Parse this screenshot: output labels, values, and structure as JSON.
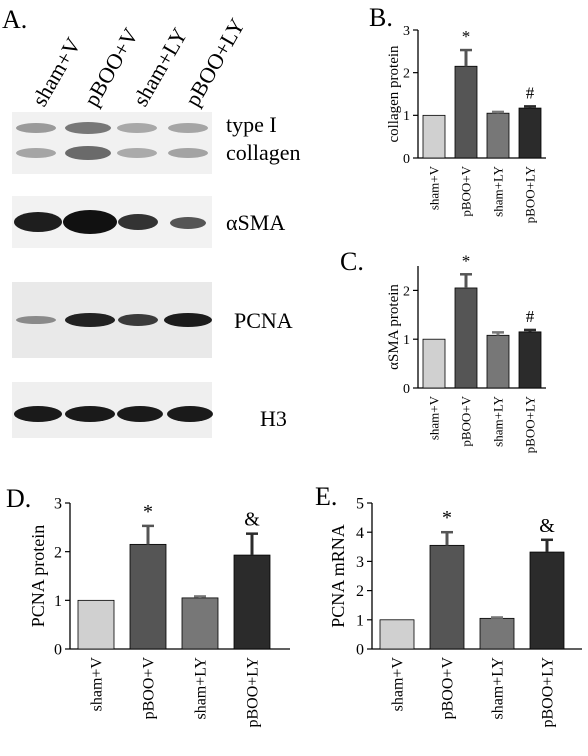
{
  "colors": {
    "sham_v": "#d0d0d0",
    "pboo_v": "#555555",
    "sham_ly": "#777777",
    "pboo_ly": "#2b2b2b",
    "axis": "#000000"
  },
  "panel_a": {
    "label": "A.",
    "lanes": [
      "sham+V",
      "pBOO+V",
      "sham+LY",
      "pBOO+LY"
    ],
    "blots": [
      {
        "label_lines": [
          "type I",
          "collagen"
        ]
      },
      {
        "label_lines": [
          "αSMA"
        ]
      },
      {
        "label_lines": [
          "PCNA"
        ]
      },
      {
        "label_lines": [
          "H3"
        ]
      }
    ]
  },
  "chart_data": [
    {
      "panel": "B.",
      "type": "bar",
      "categories": [
        "sham+V",
        "pBOO+V",
        "sham+LY",
        "pBOO+LY"
      ],
      "values": [
        1.0,
        2.15,
        1.05,
        1.17
      ],
      "errors": [
        0,
        0.38,
        0.03,
        0.04
      ],
      "annotations": [
        "",
        "*",
        "",
        "#"
      ],
      "xlabel": "",
      "ylabel": "collagen protein",
      "ylim": [
        0,
        3
      ],
      "yticks": [
        0,
        1,
        2,
        3
      ],
      "grid": false,
      "legend": "none"
    },
    {
      "panel": "C.",
      "type": "bar",
      "categories": [
        "sham+V",
        "pBOO+V",
        "sham+LY",
        "pBOO+LY"
      ],
      "values": [
        1.0,
        2.05,
        1.08,
        1.15
      ],
      "errors": [
        0,
        0.28,
        0.06,
        0.04
      ],
      "annotations": [
        "",
        "*",
        "",
        "#"
      ],
      "xlabel": "",
      "ylabel": "αSMA protein",
      "ylim": [
        0,
        2.5
      ],
      "yticks": [
        0,
        1,
        2
      ],
      "grid": false,
      "legend": "none"
    },
    {
      "panel": "D.",
      "type": "bar",
      "categories": [
        "sham+V",
        "pBOO+V",
        "sham+LY",
        "pBOO+LY"
      ],
      "values": [
        1.0,
        2.15,
        1.05,
        1.93
      ],
      "errors": [
        0,
        0.38,
        0.03,
        0.44
      ],
      "annotations": [
        "",
        "*",
        "",
        "&"
      ],
      "xlabel": "",
      "ylabel": "PCNA protein",
      "ylim": [
        0,
        3
      ],
      "yticks": [
        0,
        1,
        2,
        3
      ],
      "grid": false,
      "legend": "none"
    },
    {
      "panel": "E.",
      "type": "bar",
      "categories": [
        "sham+V",
        "pBOO+V",
        "sham+LY",
        "pBOO+LY"
      ],
      "values": [
        1.0,
        3.55,
        1.05,
        3.32
      ],
      "errors": [
        0,
        0.45,
        0.03,
        0.42
      ],
      "annotations": [
        "",
        "*",
        "",
        "&"
      ],
      "xlabel": "",
      "ylabel": "PCNA mRNA",
      "ylim": [
        0,
        5
      ],
      "yticks": [
        0,
        1,
        2,
        3,
        4,
        5
      ],
      "grid": false,
      "legend": "none"
    }
  ]
}
